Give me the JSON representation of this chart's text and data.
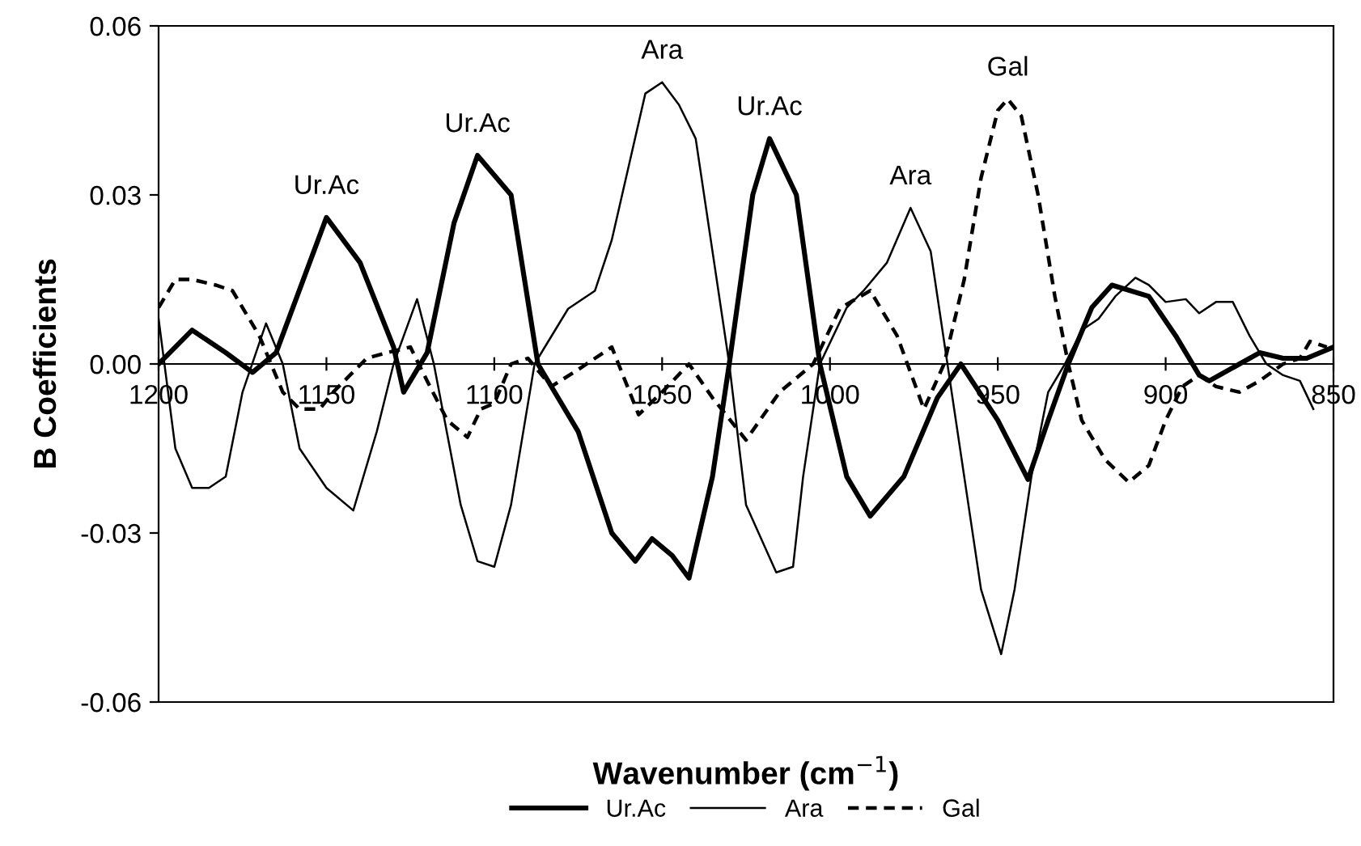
{
  "chart_data": {
    "type": "line",
    "xlabel": "Wavenumber (cm$^{−1}$)",
    "ylabel": "B Coefficients",
    "xlim": [
      1200,
      850
    ],
    "xticks": [
      1200,
      1150,
      1100,
      1050,
      1000,
      950,
      900,
      850
    ],
    "ylim": [
      -0.06,
      0.06
    ],
    "yticks": [
      {
        "value": -0.06,
        "label": "-0.06"
      },
      {
        "value": -0.03,
        "label": "-0.03"
      },
      {
        "value": 0,
        "label": "0.00"
      },
      {
        "value": 0.03,
        "label": "0.03"
      },
      {
        "value": 0.06,
        "label": "0.06"
      }
    ],
    "grid": false,
    "legend": "bottom",
    "marker": "none",
    "series": [
      {
        "name": "Ur.Ac",
        "color": "#000000",
        "line_style": "solid",
        "x": [
          1200,
          1190,
          1180,
          1172,
          1165,
          1160,
          1150,
          1140,
          1130,
          1127,
          1120,
          1112,
          1105,
          1095,
          1087,
          1075,
          1065,
          1058,
          1053,
          1047,
          1042,
          1035,
          1030,
          1023,
          1018,
          1010,
          1003,
          995,
          988,
          978,
          968,
          961,
          950,
          941,
          935,
          929,
          922,
          916,
          905,
          897,
          890,
          887,
          878,
          872,
          865,
          858,
          850
        ],
        "values": [
          0.0,
          0.006,
          0.002,
          -0.0015,
          0.002,
          0.01,
          0.026,
          0.018,
          0.003,
          -0.005,
          0.002,
          0.025,
          0.037,
          0.03,
          0.0,
          -0.012,
          -0.03,
          -0.035,
          -0.031,
          -0.034,
          -0.038,
          -0.02,
          0.0,
          0.03,
          0.04,
          0.03,
          0.0,
          -0.02,
          -0.027,
          -0.02,
          -0.006,
          0.0,
          -0.01,
          -0.0205,
          -0.01,
          0.0,
          0.01,
          0.014,
          0.012,
          0.005,
          -0.002,
          -0.003,
          0.0,
          0.002,
          0.001,
          0.001,
          0.003
        ]
      },
      {
        "name": "Ara",
        "color": "#000000",
        "line_style": "solid",
        "x": [
          1200,
          1195,
          1190,
          1185,
          1180,
          1175,
          1168,
          1163,
          1158,
          1150,
          1142,
          1135,
          1130,
          1123,
          1118,
          1110,
          1105,
          1100,
          1095,
          1088,
          1078,
          1070,
          1065,
          1060,
          1055,
          1050,
          1045,
          1040,
          1035,
          1030,
          1025,
          1016,
          1011,
          1008,
          1003,
          995,
          990,
          983,
          976,
          970,
          965,
          960,
          955,
          949,
          945,
          940,
          935,
          930,
          925,
          920,
          915,
          909,
          905,
          900,
          894,
          890,
          885,
          880,
          875,
          870,
          865,
          860,
          856
        ],
        "values": [
          0.008,
          -0.015,
          -0.022,
          -0.022,
          -0.02,
          -0.005,
          0.0072,
          0.0,
          -0.015,
          -0.022,
          -0.026,
          -0.012,
          0.0,
          0.0115,
          0.0,
          -0.025,
          -0.035,
          -0.036,
          -0.025,
          0.0,
          0.0098,
          0.013,
          0.022,
          0.035,
          0.048,
          0.05,
          0.046,
          0.04,
          0.02,
          0.0,
          -0.025,
          -0.037,
          -0.036,
          -0.02,
          0.0,
          0.01,
          0.013,
          0.018,
          0.0277,
          0.02,
          0.0,
          -0.02,
          -0.04,
          -0.0515,
          -0.04,
          -0.02,
          -0.005,
          0.0,
          0.006,
          0.008,
          0.012,
          0.0153,
          0.014,
          0.011,
          0.0115,
          0.009,
          0.011,
          0.011,
          0.005,
          0.0,
          -0.002,
          -0.003,
          -0.008
        ]
      },
      {
        "name": "Gal",
        "color": "#000000",
        "line_style": "dashed",
        "x": [
          1200,
          1195,
          1190,
          1183,
          1178,
          1170,
          1163,
          1158,
          1152,
          1148,
          1143,
          1138,
          1132,
          1125,
          1120,
          1114,
          1108,
          1104,
          1100,
          1095,
          1090,
          1083,
          1075,
          1065,
          1057,
          1050,
          1042,
          1035,
          1025,
          1015,
          1005,
          997,
          988,
          980,
          972,
          966,
          960,
          955,
          950,
          947,
          943,
          938,
          933,
          929,
          925,
          918,
          911,
          905,
          900,
          895,
          890,
          885,
          878,
          872,
          865,
          860,
          857,
          852
        ],
        "values": [
          0.01,
          0.015,
          0.015,
          0.014,
          0.013,
          0.005,
          -0.005,
          -0.008,
          -0.008,
          -0.005,
          -0.002,
          0.001,
          0.002,
          0.003,
          -0.003,
          -0.01,
          -0.013,
          -0.008,
          -0.007,
          0.0,
          0.001,
          -0.004,
          -0.001,
          0.003,
          -0.009,
          -0.005,
          0.0,
          -0.006,
          -0.0135,
          -0.005,
          0.0,
          0.0099,
          0.013,
          0.005,
          -0.008,
          0.0,
          0.015,
          0.033,
          0.045,
          0.047,
          0.044,
          0.03,
          0.012,
          0.0,
          -0.01,
          -0.017,
          -0.021,
          -0.018,
          -0.01,
          -0.004,
          -0.002,
          -0.004,
          -0.005,
          -0.003,
          0.0,
          0.001,
          0.004,
          0.003
        ]
      }
    ],
    "annotations": [
      {
        "text": "Ur.Ac",
        "x": 1150,
        "y": 0.026
      },
      {
        "text": "Ur.Ac",
        "x": 1105,
        "y": 0.037
      },
      {
        "text": "Ara",
        "x": 1050,
        "y": 0.05
      },
      {
        "text": "Ur.Ac",
        "x": 1018,
        "y": 0.04
      },
      {
        "text": "Ara",
        "x": 976,
        "y": 0.0277
      },
      {
        "text": "Gal",
        "x": 947,
        "y": 0.047
      }
    ]
  }
}
